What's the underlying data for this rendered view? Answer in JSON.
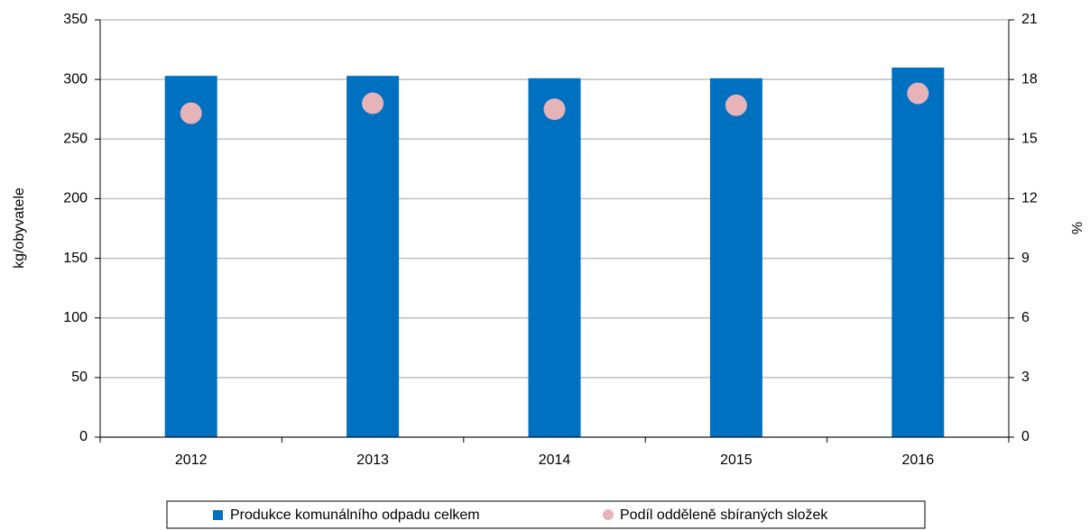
{
  "chart_data": {
    "type": "bar",
    "categories": [
      "2012",
      "2013",
      "2014",
      "2015",
      "2016"
    ],
    "series": [
      {
        "name": "Produkce komunálního odpadu celkem",
        "type": "bar",
        "color": "#0070c0",
        "values": [
          303,
          303,
          301,
          301,
          310
        ]
      },
      {
        "name": "Podíl odděleně sbíraných složek",
        "type": "scatter",
        "axis": "y2",
        "color": "#e6b3b8",
        "values": [
          16.3,
          16.8,
          16.5,
          16.7,
          17.3
        ]
      }
    ],
    "ylabel": "kg/obyvatele",
    "y2label": "%",
    "ylim": [
      0,
      350
    ],
    "yticks": [
      0,
      50,
      100,
      150,
      200,
      250,
      300,
      350
    ],
    "y2lim": [
      0,
      21
    ],
    "y2ticks": [
      0,
      3,
      6,
      9,
      12,
      15,
      18,
      21
    ],
    "grid": true,
    "legend": "bottom"
  }
}
